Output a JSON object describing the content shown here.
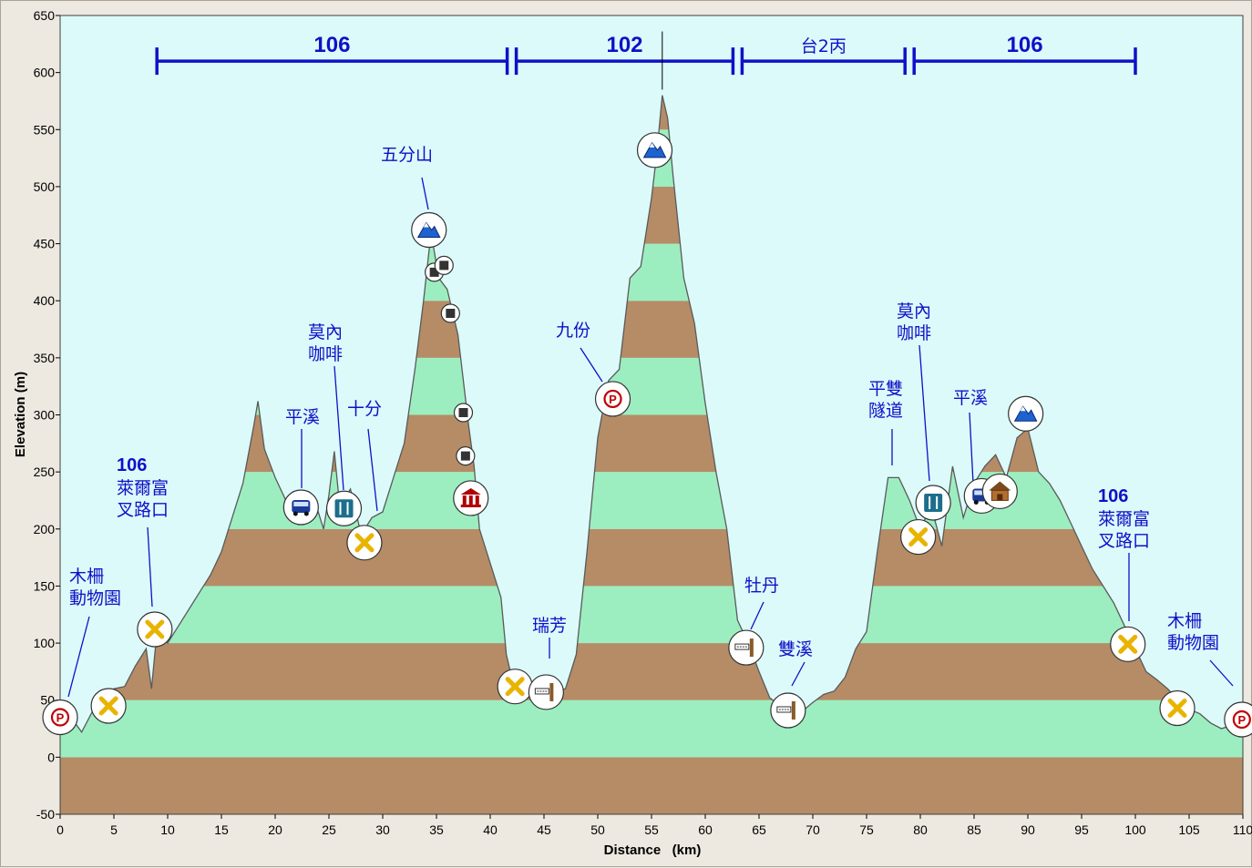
{
  "chart_data": {
    "type": "area",
    "xlabel": "Distance   (km)",
    "ylabel": "Elevation (m)",
    "xlim": [
      0,
      110
    ],
    "ylim": [
      -50,
      650
    ],
    "x_ticks": [
      0,
      5,
      10,
      15,
      20,
      25,
      30,
      35,
      40,
      45,
      50,
      55,
      60,
      65,
      70,
      75,
      80,
      85,
      90,
      95,
      100,
      105,
      110
    ],
    "y_ticks": [
      -50,
      0,
      50,
      100,
      150,
      200,
      250,
      300,
      350,
      400,
      450,
      500,
      550,
      600,
      650
    ],
    "grid": false,
    "band_colors": [
      "#9ceec0",
      "#b58c66"
    ],
    "plot_background": "#dcfafa",
    "route_color": "#1010c8",
    "profile": [
      [
        0,
        30
      ],
      [
        1,
        35
      ],
      [
        2,
        22
      ],
      [
        3,
        40
      ],
      [
        4,
        45
      ],
      [
        5,
        60
      ],
      [
        6,
        62
      ],
      [
        7,
        80
      ],
      [
        8,
        95
      ],
      [
        8.5,
        60
      ],
      [
        9,
        110
      ],
      [
        10,
        100
      ],
      [
        11,
        115
      ],
      [
        12,
        130
      ],
      [
        13,
        145
      ],
      [
        14,
        160
      ],
      [
        15,
        180
      ],
      [
        16,
        210
      ],
      [
        17,
        240
      ],
      [
        18,
        290
      ],
      [
        18.4,
        312
      ],
      [
        19,
        270
      ],
      [
        20,
        245
      ],
      [
        21,
        225
      ],
      [
        22,
        220
      ],
      [
        23,
        220
      ],
      [
        24,
        215
      ],
      [
        24.5,
        200
      ],
      [
        25,
        230
      ],
      [
        25.5,
        268
      ],
      [
        26,
        220
      ],
      [
        27,
        235
      ],
      [
        28,
        195
      ],
      [
        29,
        210
      ],
      [
        30,
        215
      ],
      [
        31,
        245
      ],
      [
        32,
        275
      ],
      [
        33,
        340
      ],
      [
        33.8,
        400
      ],
      [
        34.5,
        460
      ],
      [
        35.2,
        420
      ],
      [
        36,
        410
      ],
      [
        37,
        370
      ],
      [
        38,
        290
      ],
      [
        38.5,
        255
      ],
      [
        39,
        200
      ],
      [
        40,
        170
      ],
      [
        41,
        140
      ],
      [
        41.5,
        90
      ],
      [
        42,
        70
      ],
      [
        43,
        62
      ],
      [
        44,
        55
      ],
      [
        45,
        48
      ],
      [
        46,
        58
      ],
      [
        47,
        60
      ],
      [
        48,
        90
      ],
      [
        49,
        180
      ],
      [
        50,
        280
      ],
      [
        51,
        330
      ],
      [
        52,
        340
      ],
      [
        53,
        420
      ],
      [
        54,
        430
      ],
      [
        55,
        490
      ],
      [
        55.5,
        530
      ],
      [
        56,
        580
      ],
      [
        56.5,
        560
      ],
      [
        57,
        510
      ],
      [
        58,
        420
      ],
      [
        59,
        380
      ],
      [
        60,
        310
      ],
      [
        61,
        250
      ],
      [
        62,
        200
      ],
      [
        63,
        120
      ],
      [
        64,
        100
      ],
      [
        65,
        75
      ],
      [
        66,
        52
      ],
      [
        67,
        45
      ],
      [
        68,
        42
      ],
      [
        69,
        40
      ],
      [
        70,
        48
      ],
      [
        71,
        55
      ],
      [
        72,
        58
      ],
      [
        73,
        70
      ],
      [
        74,
        95
      ],
      [
        75,
        110
      ],
      [
        76,
        180
      ],
      [
        77,
        245
      ],
      [
        78,
        245
      ],
      [
        79,
        225
      ],
      [
        80,
        200
      ],
      [
        81,
        220
      ],
      [
        82,
        185
      ],
      [
        83,
        255
      ],
      [
        84,
        210
      ],
      [
        85,
        240
      ],
      [
        86,
        255
      ],
      [
        87,
        265
      ],
      [
        88,
        245
      ],
      [
        89,
        280
      ],
      [
        90,
        288
      ],
      [
        91,
        250
      ],
      [
        92,
        240
      ],
      [
        93,
        225
      ],
      [
        94,
        205
      ],
      [
        95,
        185
      ],
      [
        96,
        165
      ],
      [
        97,
        150
      ],
      [
        98,
        135
      ],
      [
        99,
        115
      ],
      [
        100,
        95
      ],
      [
        101,
        75
      ],
      [
        102,
        68
      ],
      [
        103,
        60
      ],
      [
        104,
        50
      ],
      [
        105,
        42
      ],
      [
        106,
        38
      ],
      [
        107,
        30
      ],
      [
        108,
        25
      ],
      [
        109,
        28
      ],
      [
        110,
        48
      ]
    ],
    "routes": [
      {
        "label": "106",
        "from": 9,
        "to": 42
      },
      {
        "label": "102",
        "from": 42,
        "to": 63
      },
      {
        "label": "台2丙",
        "from": 63,
        "to": 79
      },
      {
        "label": "106",
        "from": 79,
        "to": 100
      }
    ],
    "markers": [
      {
        "icon": "parking-icon",
        "x": 0,
        "y": 35
      },
      {
        "icon": "intersection-icon",
        "x": 4.5,
        "y": 45
      },
      {
        "icon": "intersection-icon",
        "x": 8.8,
        "y": 112
      },
      {
        "icon": "bus-icon",
        "x": 22.4,
        "y": 219
      },
      {
        "icon": "restaurant-icon",
        "x": 26.4,
        "y": 218
      },
      {
        "icon": "intersection-icon",
        "x": 28.3,
        "y": 188
      },
      {
        "icon": "summit-icon",
        "x": 34.3,
        "y": 462
      },
      {
        "icon": "waypoint-icon",
        "x": 34.8,
        "y": 425
      },
      {
        "icon": "waypoint-icon",
        "x": 35.7,
        "y": 431
      },
      {
        "icon": "waypoint-icon",
        "x": 36.3,
        "y": 389
      },
      {
        "icon": "waypoint-icon",
        "x": 37.5,
        "y": 302
      },
      {
        "icon": "waypoint-icon",
        "x": 37.7,
        "y": 264
      },
      {
        "icon": "museum-icon",
        "x": 38.2,
        "y": 227
      },
      {
        "icon": "intersection-icon",
        "x": 42.3,
        "y": 62
      },
      {
        "icon": "signpost-icon",
        "x": 45.2,
        "y": 57
      },
      {
        "icon": "parking-icon",
        "x": 51.4,
        "y": 314
      },
      {
        "icon": "summit-icon",
        "x": 55.3,
        "y": 532
      },
      {
        "icon": "signpost-icon",
        "x": 63.8,
        "y": 96
      },
      {
        "icon": "signpost-icon",
        "x": 67.7,
        "y": 41
      },
      {
        "icon": "intersection-icon",
        "x": 79.8,
        "y": 193
      },
      {
        "icon": "restaurant-icon",
        "x": 81.2,
        "y": 223
      },
      {
        "icon": "bus-icon",
        "x": 85.7,
        "y": 229
      },
      {
        "icon": "lodge-icon",
        "x": 87.4,
        "y": 233
      },
      {
        "icon": "summit-icon",
        "x": 89.8,
        "y": 301
      },
      {
        "icon": "intersection-icon",
        "x": 99.3,
        "y": 99
      },
      {
        "icon": "intersection-icon",
        "x": 103.9,
        "y": 43
      },
      {
        "icon": "parking-icon",
        "x": 109.9,
        "y": 33
      }
    ],
    "annotations": [
      {
        "lines": [
          "木柵",
          "動物園"
        ]
      },
      {
        "bold": "106",
        "lines": [
          "萊爾富",
          "叉路口"
        ]
      },
      {
        "lines": [
          "平溪"
        ]
      },
      {
        "lines": [
          "莫內",
          "咖啡"
        ]
      },
      {
        "lines": [
          "十分"
        ]
      },
      {
        "lines": [
          "五分山"
        ]
      },
      {
        "lines": [
          "瑞芳"
        ]
      },
      {
        "lines": [
          "九份"
        ]
      },
      {
        "lines": [
          "牡丹"
        ]
      },
      {
        "lines": [
          "雙溪"
        ]
      },
      {
        "lines": [
          "平雙",
          "隧道"
        ]
      },
      {
        "lines": [
          "莫內",
          "咖啡"
        ]
      },
      {
        "lines": [
          "平溪"
        ]
      },
      {
        "bold": "106",
        "lines": [
          "萊爾富",
          "叉路口"
        ]
      },
      {
        "lines": [
          "木柵",
          "動物園"
        ]
      }
    ]
  }
}
